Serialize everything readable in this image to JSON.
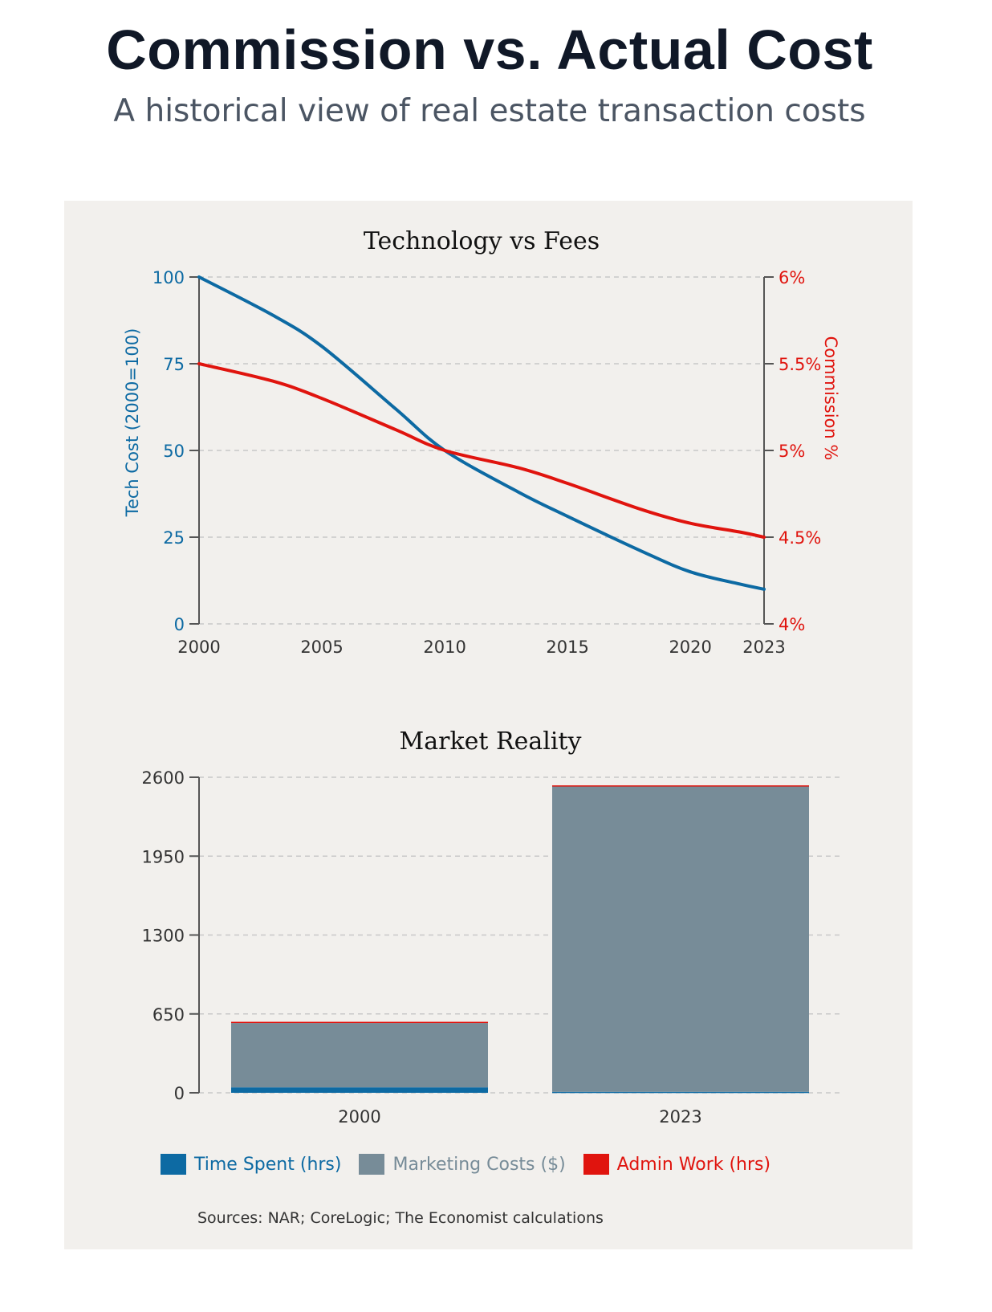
{
  "header": {
    "title": "Commission vs. Actual Cost",
    "subtitle": "A historical view of real estate transaction costs"
  },
  "colors": {
    "blue": "#0d6aa3",
    "red": "#e0140e",
    "gray": "#778c98",
    "panel": "#f2f0ed"
  },
  "chart_data": [
    {
      "type": "line",
      "title": "Technology vs Fees",
      "x": [
        2000,
        2003,
        2005,
        2008,
        2010,
        2013,
        2015,
        2018,
        2020,
        2022,
        2023
      ],
      "xticks": [
        "2000",
        "2005",
        "2010",
        "2015",
        "2020",
        "2023"
      ],
      "xtick_values": [
        2000,
        2005,
        2010,
        2015,
        2020,
        2023
      ],
      "xlim": [
        2000,
        2023
      ],
      "ylabel": "Tech Cost (2000=100)",
      "ylim": [
        0,
        100
      ],
      "yticks": [
        "0",
        "25",
        "50",
        "75",
        "100"
      ],
      "y2label": "Commission %",
      "y2lim": [
        4,
        6
      ],
      "y2ticks": [
        "4%",
        "4.5%",
        "5%",
        "5.5%",
        "6%"
      ],
      "grid": true,
      "series": [
        {
          "axis": "left",
          "color": "#0d6aa3",
          "values": [
            100,
            89,
            80,
            62,
            50,
            38,
            31,
            21,
            15,
            11.5,
            10
          ]
        },
        {
          "axis": "right",
          "color": "#e0140e",
          "values": [
            5.5,
            5.4,
            5.3,
            5.12,
            5.0,
            4.9,
            4.81,
            4.66,
            4.58,
            4.53,
            4.5
          ]
        }
      ]
    },
    {
      "type": "bar",
      "stacked": true,
      "title": "Market Reality",
      "categories": [
        "2000",
        "2023"
      ],
      "ylim": [
        0,
        2600
      ],
      "yticks": [
        "0",
        "650",
        "1300",
        "1950",
        "2600"
      ],
      "grid": true,
      "series": [
        {
          "name": "Time Spent (hrs)",
          "color": "#0d6aa3",
          "values": [
            45,
            8
          ]
        },
        {
          "name": "Marketing Costs ($)",
          "color": "#778c98",
          "values": [
            530,
            2520
          ]
        },
        {
          "name": "Admin Work (hrs)",
          "color": "#e0140e",
          "values": [
            10,
            5
          ]
        }
      ]
    }
  ],
  "legend": {
    "items": [
      {
        "label": "Time Spent (hrs)",
        "color": "#0d6aa3",
        "text_color": "#0d6aa3"
      },
      {
        "label": "Marketing Costs ($)",
        "color": "#778c98",
        "text_color": "#778c98"
      },
      {
        "label": "Admin Work (hrs)",
        "color": "#e0140e",
        "text_color": "#e0140e"
      }
    ]
  },
  "source": "Sources: NAR; CoreLogic; The Economist calculations"
}
